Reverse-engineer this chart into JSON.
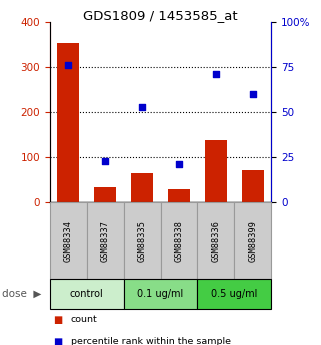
{
  "title": "GDS1809 / 1453585_at",
  "samples": [
    "GSM88334",
    "GSM88337",
    "GSM88335",
    "GSM88338",
    "GSM88336",
    "GSM88399"
  ],
  "bar_values": [
    355,
    32,
    65,
    28,
    138,
    72
  ],
  "dot_values_pct": [
    76,
    23,
    53,
    21,
    71,
    60
  ],
  "bar_color": "#cc2200",
  "dot_color": "#0000cc",
  "left_ylim": [
    0,
    400
  ],
  "right_ylim": [
    0,
    100
  ],
  "left_yticks": [
    0,
    100,
    200,
    300,
    400
  ],
  "right_yticks": [
    0,
    25,
    50,
    75,
    100
  ],
  "right_yticklabels": [
    "0",
    "25",
    "50",
    "75",
    "100%"
  ],
  "left_ylabel_color": "#cc2200",
  "right_ylabel_color": "#0000cc",
  "dose_groups": [
    {
      "label": "control",
      "n": 2,
      "color": "#cceecc"
    },
    {
      "label": "0.1 ug/ml",
      "n": 2,
      "color": "#88dd88"
    },
    {
      "label": "0.5 ug/ml",
      "n": 2,
      "color": "#44cc44"
    }
  ],
  "legend_count_label": "count",
  "legend_pct_label": "percentile rank within the sample",
  "grid_dotted_values": [
    100,
    200,
    300
  ],
  "sample_box_color": "#cccccc",
  "sample_box_border": "#999999"
}
